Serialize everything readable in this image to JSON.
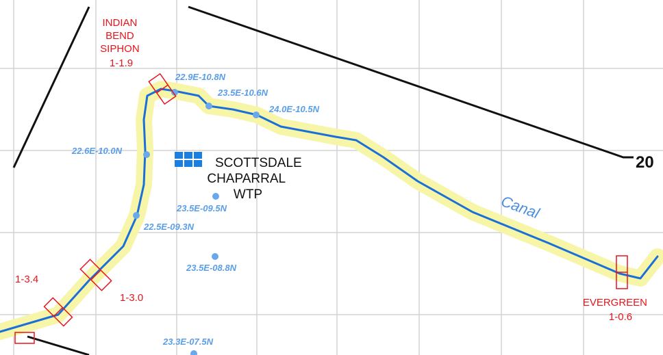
{
  "map": {
    "structures": {
      "indian_bend_siphon": [
        "INDIAN",
        "BEND",
        "SIPHON",
        "1-1.9"
      ],
      "evergreen": [
        "EVERGREEN",
        "1-0.6"
      ],
      "mile_3_4": "1-3.4",
      "mile_3_0": "1-3.0"
    },
    "plant": [
      "SCOTTSDALE",
      "CHAPARRAL",
      "WTP"
    ],
    "canal_label": "Canal",
    "road_label": "20",
    "stations": [
      "22.9E-10.8N",
      "23.5E-10.6N",
      "24.0E-10.5N",
      "22.6E-10.0N",
      "23.5E-09.5N",
      "22.5E-09.3N",
      "23.5E-08.8N",
      "23.3E-07.5N"
    ]
  }
}
